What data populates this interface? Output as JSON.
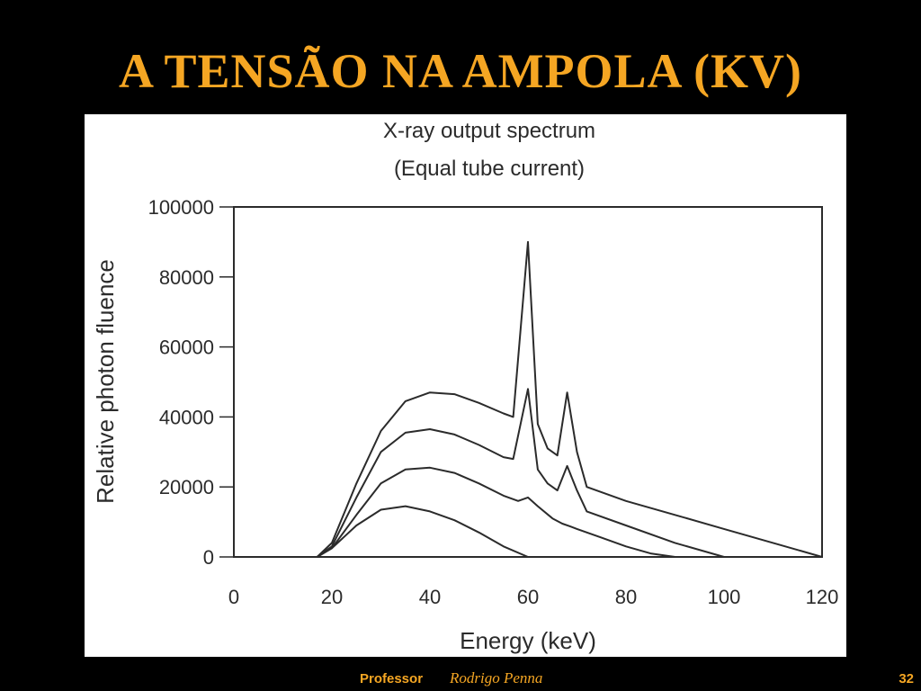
{
  "slide": {
    "title": "A TENSÃO NA AMPOLA (KV)",
    "footer": {
      "professor_label": "Professor",
      "professor_name": "Rodrigo Penna",
      "page_number": "32"
    },
    "accent_color": "#F5A623",
    "background_color": "#000000"
  },
  "chart_data": {
    "type": "line",
    "title": "X-ray output spectrum",
    "subtitle": "(Equal tube current)",
    "xlabel": "Energy (keV)",
    "ylabel": "Relative photon fluence",
    "xlim": [
      0,
      120
    ],
    "ylim": [
      0,
      100000
    ],
    "xticks": [
      "0",
      "20",
      "40",
      "60",
      "80",
      "100",
      "120"
    ],
    "yticks": [
      "0",
      "20000",
      "40000",
      "60000",
      "80000",
      "100000"
    ],
    "grid": false,
    "legend": "none",
    "line_color": "#2b2b2b",
    "series": [
      {
        "x": [
          17,
          20,
          25,
          30,
          35,
          40,
          45,
          50,
          55,
          60,
          65,
          70,
          75,
          80
        ],
        "y": [
          0,
          2500,
          9000,
          13500,
          14500,
          13000,
          10500,
          7000,
          3000,
          0,
          0,
          0,
          0,
          0
        ]
      },
      {
        "x": [
          17,
          20,
          25,
          30,
          35,
          40,
          45,
          50,
          55,
          58,
          60,
          62,
          65,
          67,
          68.5,
          70,
          75,
          80,
          85,
          90
        ],
        "y": [
          0,
          2500,
          12000,
          21000,
          25000,
          25500,
          24000,
          21000,
          17500,
          16000,
          17000,
          14500,
          11000,
          9500,
          8800,
          8000,
          5500,
          3000,
          1000,
          0
        ]
      },
      {
        "x": [
          17,
          20,
          25,
          30,
          35,
          40,
          45,
          50,
          55,
          57,
          60,
          62,
          64,
          66,
          68,
          70,
          72,
          80,
          90,
          100
        ],
        "y": [
          0,
          3000,
          17000,
          30000,
          35500,
          36500,
          35000,
          32000,
          28500,
          28000,
          48000,
          25000,
          21000,
          19000,
          26000,
          19000,
          13000,
          9000,
          4000,
          0
        ]
      },
      {
        "x": [
          17,
          20,
          25,
          30,
          35,
          40,
          45,
          50,
          55,
          57,
          60,
          62,
          64,
          66,
          68,
          70,
          72,
          80,
          90,
          100,
          110,
          120
        ],
        "y": [
          0,
          4000,
          21000,
          36000,
          44500,
          47000,
          46500,
          44000,
          41000,
          40000,
          90000,
          38000,
          31000,
          29000,
          47000,
          30000,
          20000,
          16000,
          12000,
          8000,
          4000,
          0
        ]
      }
    ]
  }
}
